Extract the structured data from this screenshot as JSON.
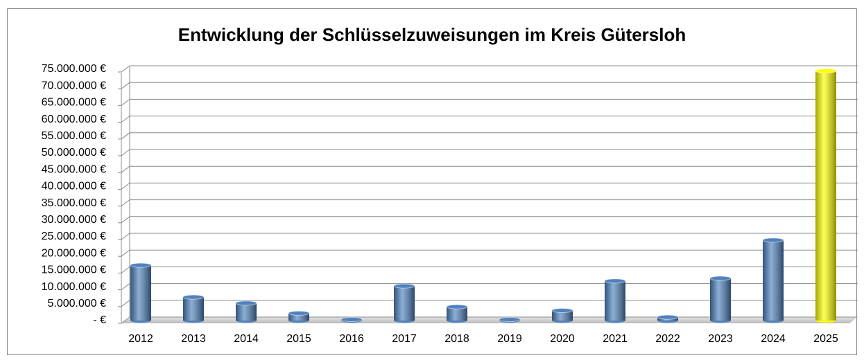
{
  "chart_data": {
    "type": "bar",
    "title": "Entwicklung der Schlüsselzuweisungen im Kreis Gütersloh",
    "categories": [
      "2012",
      "2013",
      "2014",
      "2015",
      "2016",
      "2017",
      "2018",
      "2019",
      "2020",
      "2021",
      "2022",
      "2023",
      "2024",
      "2025"
    ],
    "values": [
      16500000,
      7000000,
      5200000,
      2200000,
      300000,
      10300000,
      4100000,
      300000,
      3000000,
      11800000,
      1000000,
      12600000,
      24000000,
      74500000
    ],
    "colors": [
      "#4f81bd",
      "#4f81bd",
      "#4f81bd",
      "#4f81bd",
      "#4f81bd",
      "#4f81bd",
      "#4f81bd",
      "#4f81bd",
      "#4f81bd",
      "#4f81bd",
      "#4f81bd",
      "#4f81bd",
      "#4f81bd",
      "#ffff00"
    ],
    "ylim": [
      0,
      75000000
    ],
    "yticks": [
      {
        "value": 0,
        "label": "- €"
      },
      {
        "value": 5000000,
        "label": "5.000.000 €"
      },
      {
        "value": 10000000,
        "label": "10.000.000 €"
      },
      {
        "value": 15000000,
        "label": "15.000.000 €"
      },
      {
        "value": 20000000,
        "label": "20.000.000 €"
      },
      {
        "value": 25000000,
        "label": "25.000.000 €"
      },
      {
        "value": 30000000,
        "label": "30.000.000 €"
      },
      {
        "value": 35000000,
        "label": "35.000.000 €"
      },
      {
        "value": 40000000,
        "label": "40.000.000 €"
      },
      {
        "value": 45000000,
        "label": "45.000.000 €"
      },
      {
        "value": 50000000,
        "label": "50.000.000 €"
      },
      {
        "value": 55000000,
        "label": "55.000.000 €"
      },
      {
        "value": 60000000,
        "label": "60.000.000 €"
      },
      {
        "value": 65000000,
        "label": "65.000.000 €"
      },
      {
        "value": 70000000,
        "label": "70.000.000 €"
      },
      {
        "value": 75000000,
        "label": "75.000.000 €"
      }
    ],
    "grid": true
  }
}
